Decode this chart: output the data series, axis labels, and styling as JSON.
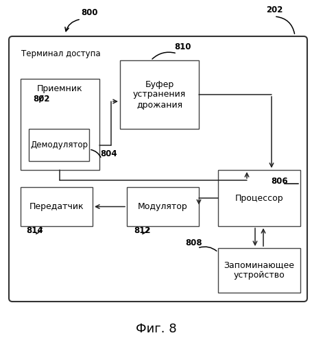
{
  "title": "Фиг. 8",
  "background_color": "#ffffff",
  "outer_box_label": "Терминал доступа",
  "receiver_label": "Приемник",
  "demodulator_label": "Демодулятор",
  "jitter_label": "Буфер\nустранения\nдрожания",
  "processor_label": "Процессор",
  "memory_label": "Запоминающее\nустройство",
  "modulator_label": "Модулятор",
  "transmitter_label": "Передатчик"
}
